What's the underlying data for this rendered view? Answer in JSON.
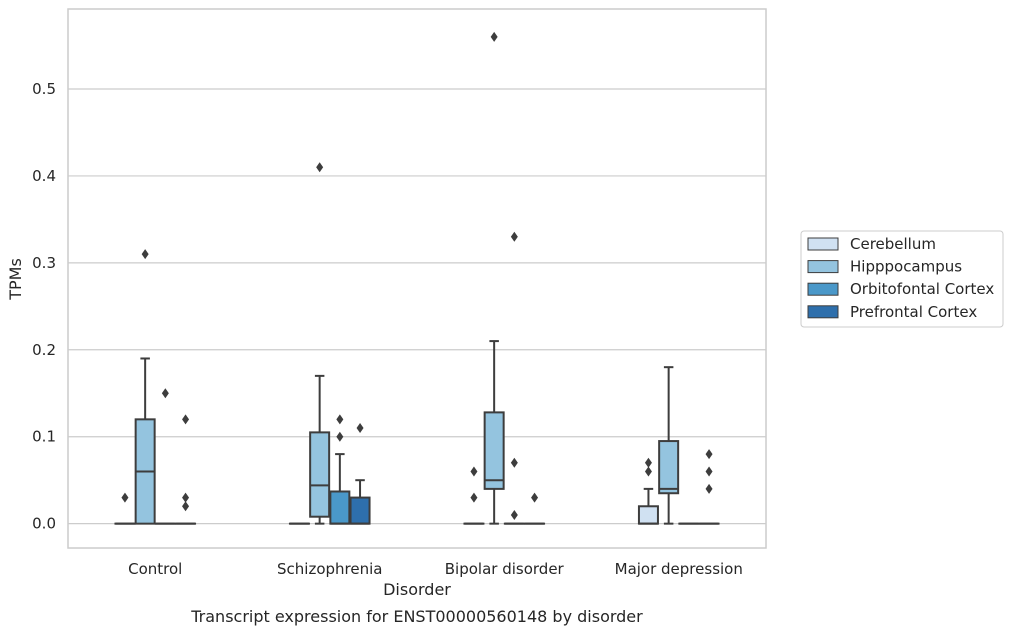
{
  "chart_data": {
    "type": "boxplot",
    "caption": "Transcript expression for ENST00000560148 by disorder",
    "xlabel": "Disorder",
    "ylabel": "TPMs",
    "ylim": [
      -0.028,
      0.592
    ],
    "yticks": [
      0.0,
      0.1,
      0.2,
      0.3,
      0.4,
      0.5
    ],
    "ytick_labels": [
      "0.0",
      "0.1",
      "0.2",
      "0.3",
      "0.4",
      "0.5"
    ],
    "grid": "horizontal",
    "legend_position": "right",
    "categories": [
      "Control",
      "Schizophrenia",
      "Bipolar disorder",
      "Major depression"
    ],
    "series": [
      {
        "name": "Cerebellum",
        "color": "#d0e1f2",
        "boxes": [
          {
            "category": "Control",
            "whislo": 0,
            "q1": 0,
            "med": 0,
            "q3": 0,
            "whishi": 0,
            "fliers": [
              0.03
            ]
          },
          {
            "category": "Schizophrenia",
            "whislo": 0,
            "q1": 0,
            "med": 0,
            "q3": 0,
            "whishi": 0,
            "fliers": []
          },
          {
            "category": "Bipolar disorder",
            "whislo": 0,
            "q1": 0,
            "med": 0,
            "q3": 0,
            "whishi": 0,
            "fliers": [
              0.03,
              0.06
            ]
          },
          {
            "category": "Major depression",
            "whislo": 0,
            "q1": 0,
            "med": 0,
            "q3": 0.02,
            "whishi": 0.04,
            "fliers": [
              0.06,
              0.07
            ]
          }
        ]
      },
      {
        "name": "Hipppocampus",
        "color": "#94c4df",
        "boxes": [
          {
            "category": "Control",
            "whislo": 0,
            "q1": 0,
            "med": 0.06,
            "q3": 0.12,
            "whishi": 0.19,
            "fliers": [
              0.31
            ]
          },
          {
            "category": "Schizophrenia",
            "whislo": 0,
            "q1": 0.008,
            "med": 0.044,
            "q3": 0.105,
            "whishi": 0.17,
            "fliers": [
              0.41
            ]
          },
          {
            "category": "Bipolar disorder",
            "whislo": 0,
            "q1": 0.04,
            "med": 0.05,
            "q3": 0.128,
            "whishi": 0.21,
            "fliers": [
              0.56
            ]
          },
          {
            "category": "Major depression",
            "whislo": 0,
            "q1": 0.035,
            "med": 0.04,
            "q3": 0.095,
            "whishi": 0.18,
            "fliers": []
          }
        ]
      },
      {
        "name": "Orbitofontal Cortex",
        "color": "#4a98c9",
        "boxes": [
          {
            "category": "Control",
            "whislo": 0,
            "q1": 0,
            "med": 0,
            "q3": 0,
            "whishi": 0,
            "fliers": [
              0.15
            ]
          },
          {
            "category": "Schizophrenia",
            "whislo": 0,
            "q1": 0,
            "med": 0,
            "q3": 0.037,
            "whishi": 0.08,
            "fliers": [
              0.1,
              0.12
            ]
          },
          {
            "category": "Bipolar disorder",
            "whislo": 0,
            "q1": 0,
            "med": 0,
            "q3": 0,
            "whishi": 0,
            "fliers": [
              0.33,
              0.07,
              0.01
            ]
          },
          {
            "category": "Major depression",
            "whislo": 0,
            "q1": 0,
            "med": 0,
            "q3": 0,
            "whishi": 0,
            "fliers": []
          }
        ]
      },
      {
        "name": "Prefrontal Cortex",
        "color": "#2e6fac",
        "boxes": [
          {
            "category": "Control",
            "whislo": 0,
            "q1": 0,
            "med": 0,
            "q3": 0,
            "whishi": 0,
            "fliers": [
              0.12,
              0.03,
              0.02
            ]
          },
          {
            "category": "Schizophrenia",
            "whislo": 0,
            "q1": 0,
            "med": 0,
            "q3": 0.03,
            "whishi": 0.05,
            "fliers": [
              0.11
            ]
          },
          {
            "category": "Bipolar disorder",
            "whislo": 0,
            "q1": 0,
            "med": 0,
            "q3": 0,
            "whishi": 0,
            "fliers": [
              0.03
            ]
          },
          {
            "category": "Major depression",
            "whislo": 0,
            "q1": 0,
            "med": 0,
            "q3": 0,
            "whishi": 0,
            "fliers": [
              0.08,
              0.06,
              0.04
            ]
          }
        ]
      }
    ]
  }
}
